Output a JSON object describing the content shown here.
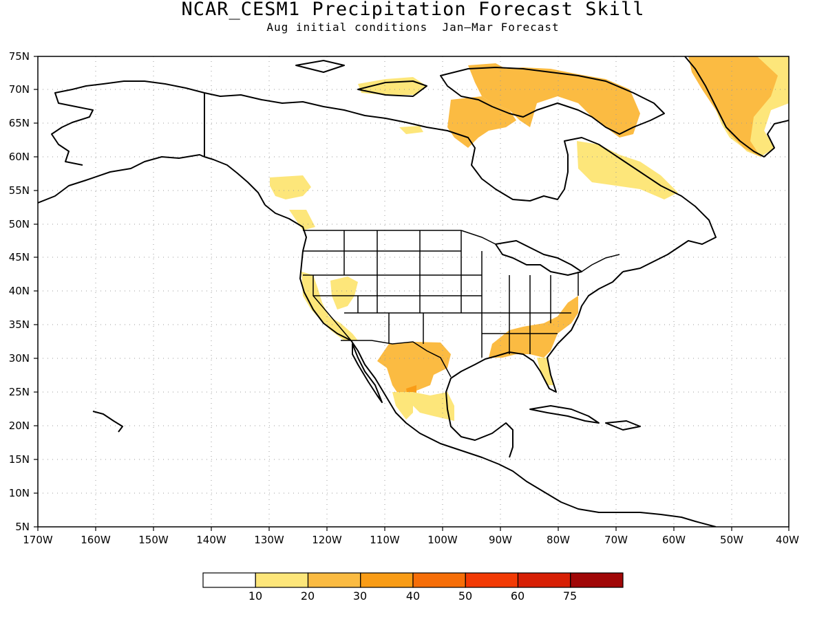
{
  "title": "NCAR_CESM1 Precipitation Forecast Skill",
  "subtitle": "Aug initial conditions  Jan–Mar Forecast",
  "map": {
    "lon_range": [
      -170,
      -40
    ],
    "lat_range": [
      5,
      75
    ],
    "lon_ticks": [
      "170W",
      "160W",
      "150W",
      "140W",
      "130W",
      "120W",
      "110W",
      "100W",
      "90W",
      "80W",
      "70W",
      "60W",
      "50W",
      "40W"
    ],
    "lat_ticks": [
      "5N",
      "10N",
      "15N",
      "20N",
      "25N",
      "30N",
      "35N",
      "40N",
      "45N",
      "50N",
      "55N",
      "60N",
      "65N",
      "70N",
      "75N"
    ],
    "grid": "dotted",
    "skill_regions": [
      {
        "region": "Greenland",
        "level": "20-30"
      },
      {
        "region": "Baffin Island / Canadian Arctic",
        "level": "20-30"
      },
      {
        "region": "Labrador / Quebec",
        "level": "10-20"
      },
      {
        "region": "British Columbia",
        "level": "10-20"
      },
      {
        "region": "California / Nevada",
        "level": "10-20"
      },
      {
        "region": "Texas / Northern Mexico",
        "level": "20-30"
      },
      {
        "region": "Southeastern United States",
        "level": "20-30"
      },
      {
        "region": "Florida",
        "level": "20-30"
      }
    ]
  },
  "colorbar": {
    "labels": [
      "10",
      "20",
      "30",
      "40",
      "50",
      "60",
      "75"
    ],
    "colors": [
      "#ffffff",
      "#fde67a",
      "#fbbb42",
      "#f99c16",
      "#f66e08",
      "#f23a04",
      "#d71f04",
      "#a00707"
    ]
  }
}
